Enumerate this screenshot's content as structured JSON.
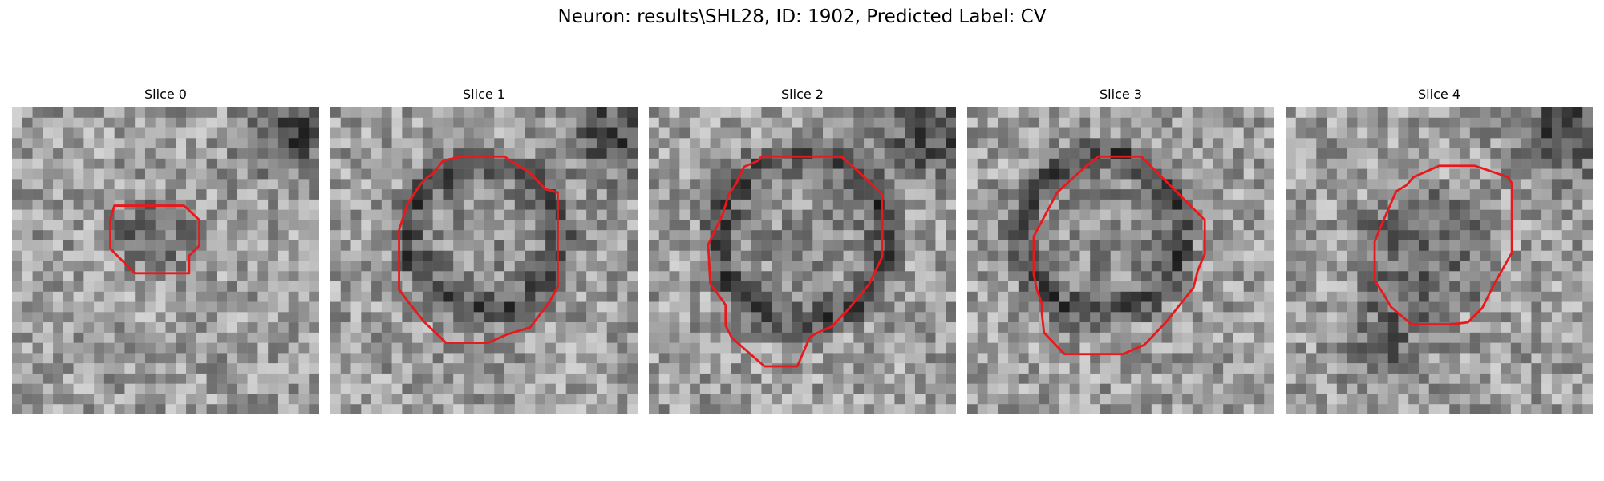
{
  "figure": {
    "title": "Neuron: results\\SHL28, ID: 1902, Predicted Label: CV",
    "outline_color": "#e8191c"
  },
  "panels": [
    {
      "label": "Slice 0"
    },
    {
      "label": "Slice 1"
    },
    {
      "label": "Slice 2"
    },
    {
      "label": "Slice 3"
    },
    {
      "label": "Slice 4"
    }
  ]
}
